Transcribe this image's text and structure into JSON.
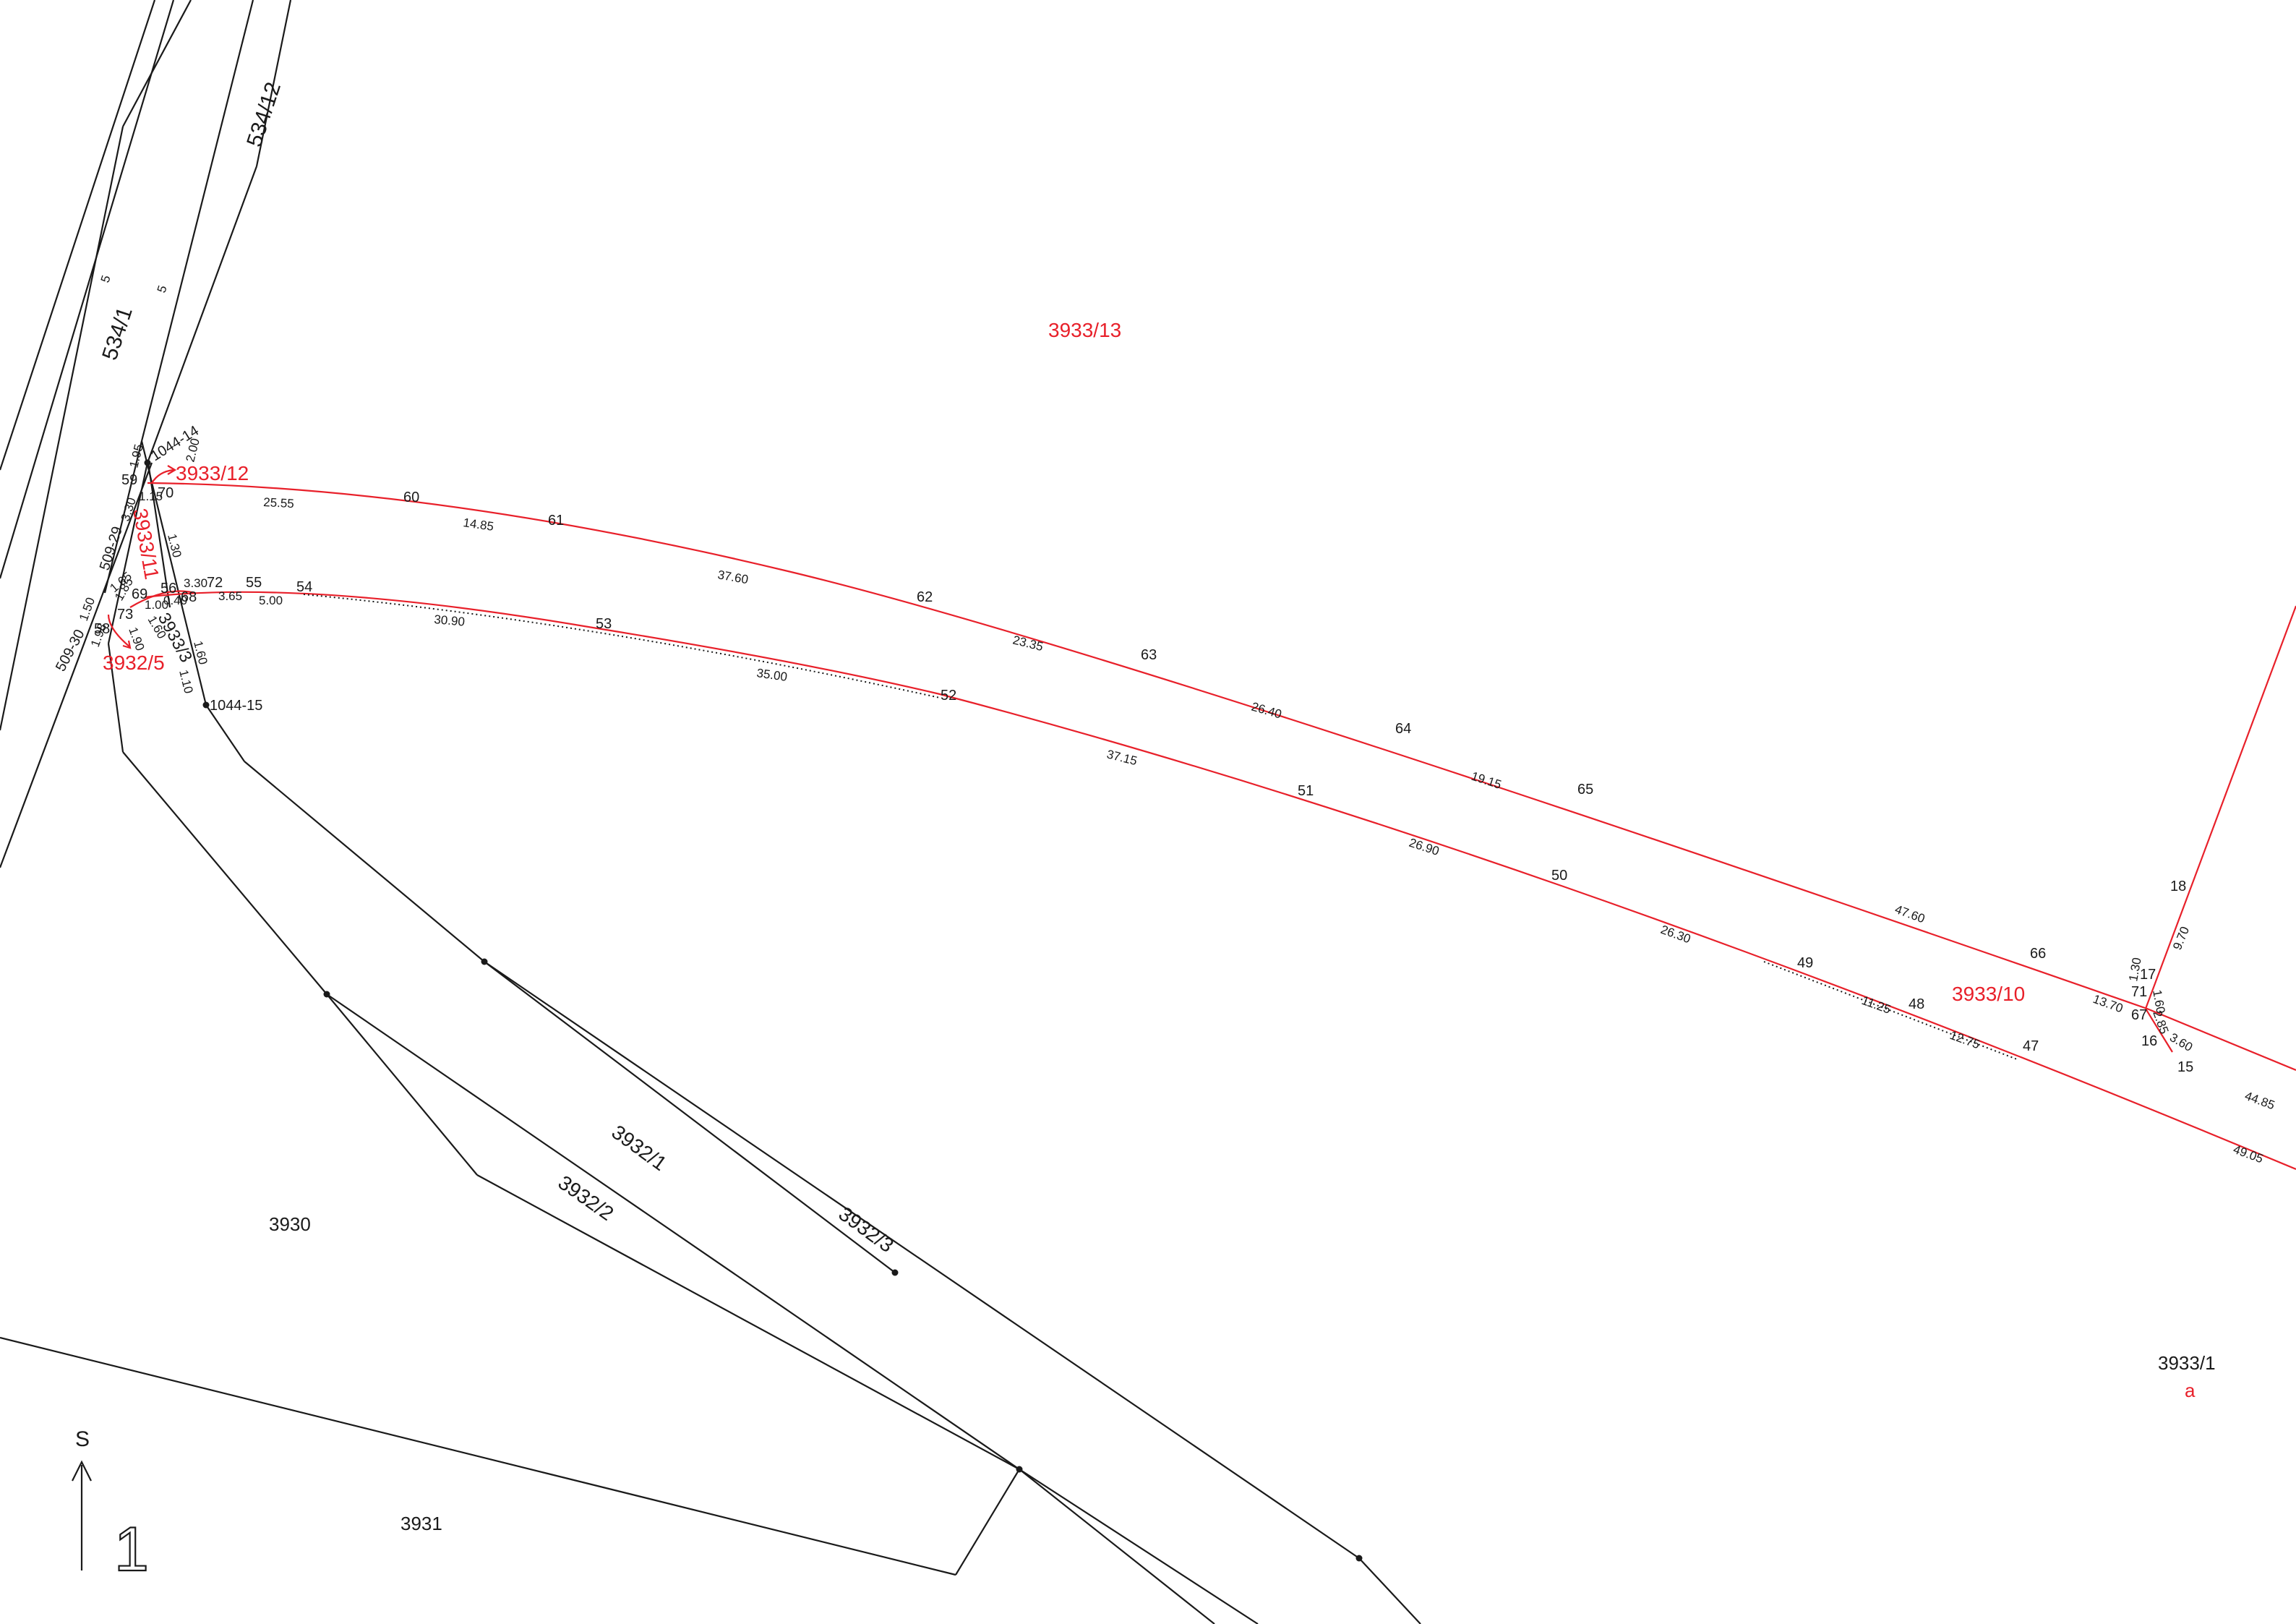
{
  "colors": {
    "boundary": "#1a1a1a",
    "change": "#e8202a",
    "background": "#ffffff"
  },
  "parcels": {
    "p3933_13": "3933/13",
    "p3933_12": "3933/12",
    "p3933_11": "3933/11",
    "p3933_10": "3933/10",
    "p3933_1": "3933/1",
    "p3933_1_sub": "a",
    "p3933_3": "3933/3",
    "p3932_5": "3932/5",
    "p3932_1": "3932/1",
    "p3932_2": "3932/2",
    "p3932_3": "3932/3",
    "p3930": "3930",
    "p3931": "3931",
    "p534_1": "534/1",
    "p534_12": "534/12"
  },
  "points": {
    "pt_1044_14": "1044-14",
    "pt_1044_15": "1044-15",
    "pt_509_29": "509-29",
    "pt_509_30": "509-30",
    "pt47": "47",
    "pt48": "48",
    "pt49": "49",
    "pt50": "50",
    "pt51": "51",
    "pt52": "52",
    "pt53": "53",
    "pt54": "54",
    "pt55": "55",
    "pt56": "56",
    "pt58": "58",
    "pt59": "59",
    "pt60": "60",
    "pt61": "61",
    "pt62": "62",
    "pt63": "63",
    "pt64": "64",
    "pt65": "65",
    "pt66": "66",
    "pt67": "67",
    "pt68": "68",
    "pt69": "69",
    "pt70": "70",
    "pt71": "71",
    "pt72": "72",
    "pt73": "73",
    "pt15": "15",
    "pt16": "16",
    "pt17": "17",
    "pt18": "18"
  },
  "measures": {
    "m25_55": "25.55",
    "m14_85": "14.85",
    "m37_60": "37.60",
    "m23_35": "23.35",
    "m26_40": "26.40",
    "m19_15": "19.15",
    "m47_60": "47.60",
    "m13_70": "13.70",
    "m44_85": "44.85",
    "m9_70": "9.70",
    "m1_30a": "1.30",
    "m1_60": "1.60",
    "m2_85": "2.85",
    "m3_60": "3.60",
    "m5_00": "5.00",
    "m3_65": "3.65",
    "m3_30": "3.30",
    "m30_90": "30.90",
    "m35_00": "35.00",
    "m37_15": "37.15",
    "m26_90": "26.90",
    "m26_30": "26.30",
    "m11_25": "11.25",
    "m12_75": "12.75",
    "m49_05": "49.05",
    "m1_95": "1.95",
    "m2_00": "2.00",
    "m1_15": "1.15",
    "m1_30b": "1.30",
    "m3_30v": "3.30",
    "m1_60b": "1.60",
    "m1_10": "1.10",
    "m1_50": "1.50",
    "m1_85": "1.85",
    "m1_90": "1.90",
    "m1_98": "1.98",
    "m1_00": "1.00",
    "m0_40": "0.40",
    "m1_65": "1.65",
    "m1_60c": "1.60",
    "road5a": "5",
    "road5b": "5"
  },
  "north_arrow": {
    "label": "S"
  },
  "sheet_number": "1"
}
